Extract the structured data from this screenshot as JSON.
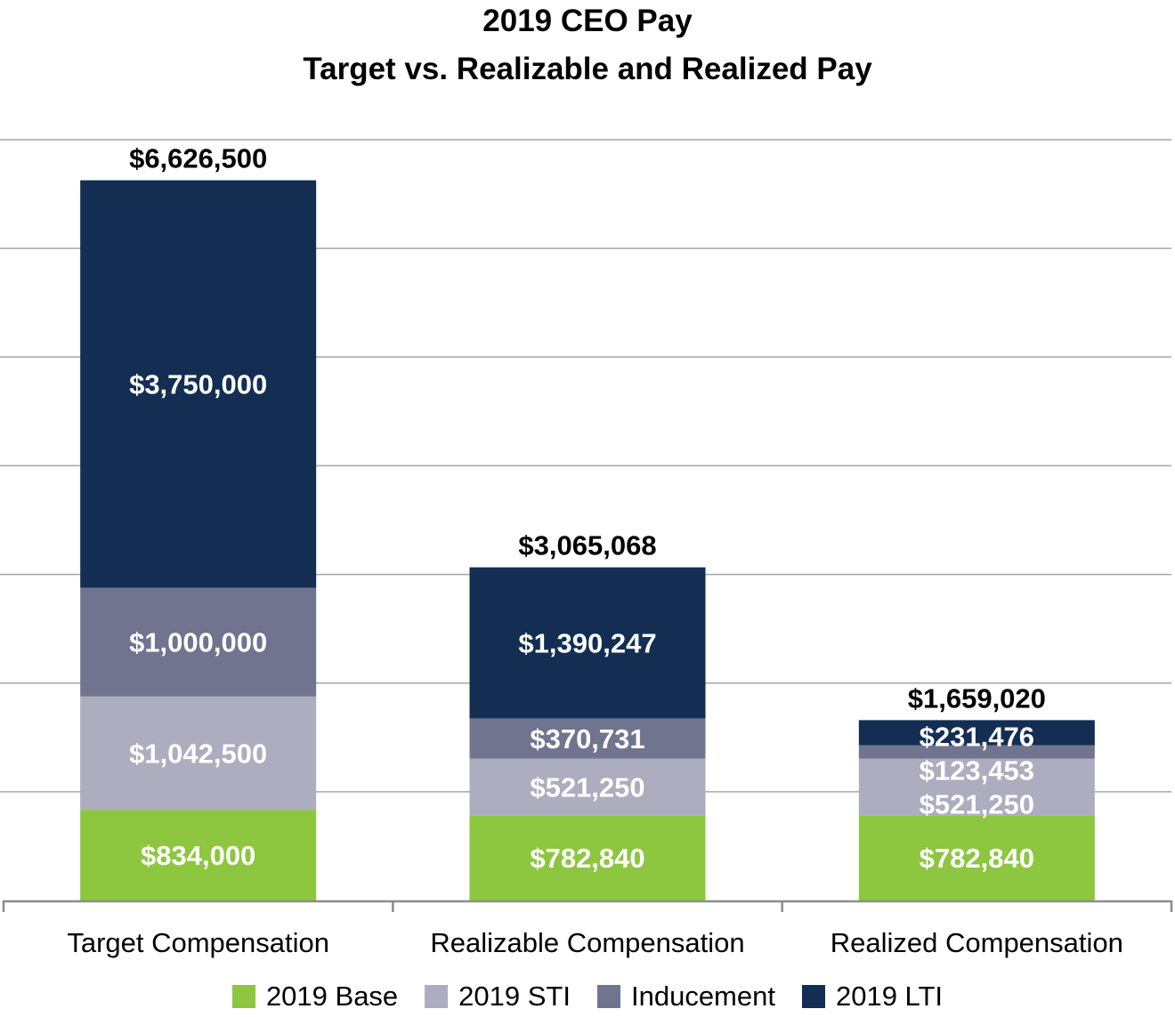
{
  "chart_data": {
    "type": "bar",
    "stacked": true,
    "title": "2019 CEO Pay",
    "subtitle": "Target vs. Realizable and Realized Pay",
    "categories": [
      "Target Compensation",
      "Realizable Compensation",
      "Realized Compensation"
    ],
    "series": [
      {
        "name": "2019 Base",
        "color": "#8dc63f",
        "values": [
          834000,
          782840,
          782840
        ],
        "labels": [
          "$834,000",
          "$782,840",
          "$782,840"
        ]
      },
      {
        "name": "2019 STI",
        "color": "#acadbe",
        "values": [
          1042500,
          521250,
          521250
        ],
        "labels": [
          "$1,042,500",
          "$521,250",
          "$521,250"
        ]
      },
      {
        "name": "Inducement",
        "color": "#70748f",
        "values": [
          1000000,
          370731,
          123453
        ],
        "labels": [
          "$1,000,000",
          "$370,731",
          "$123,453"
        ]
      },
      {
        "name": "2019 LTI",
        "color": "#132e52",
        "values": [
          3750000,
          1390247,
          231476
        ],
        "labels": [
          "$3,750,000",
          "$1,390,247",
          "$231,476"
        ]
      }
    ],
    "totals": [
      "$6,626,500",
      "$3,065,068",
      "$1,659,020"
    ],
    "ylim": [
      0,
      7000000
    ],
    "grid": true,
    "legend": "bottom",
    "xlabel": "",
    "ylabel": ""
  }
}
